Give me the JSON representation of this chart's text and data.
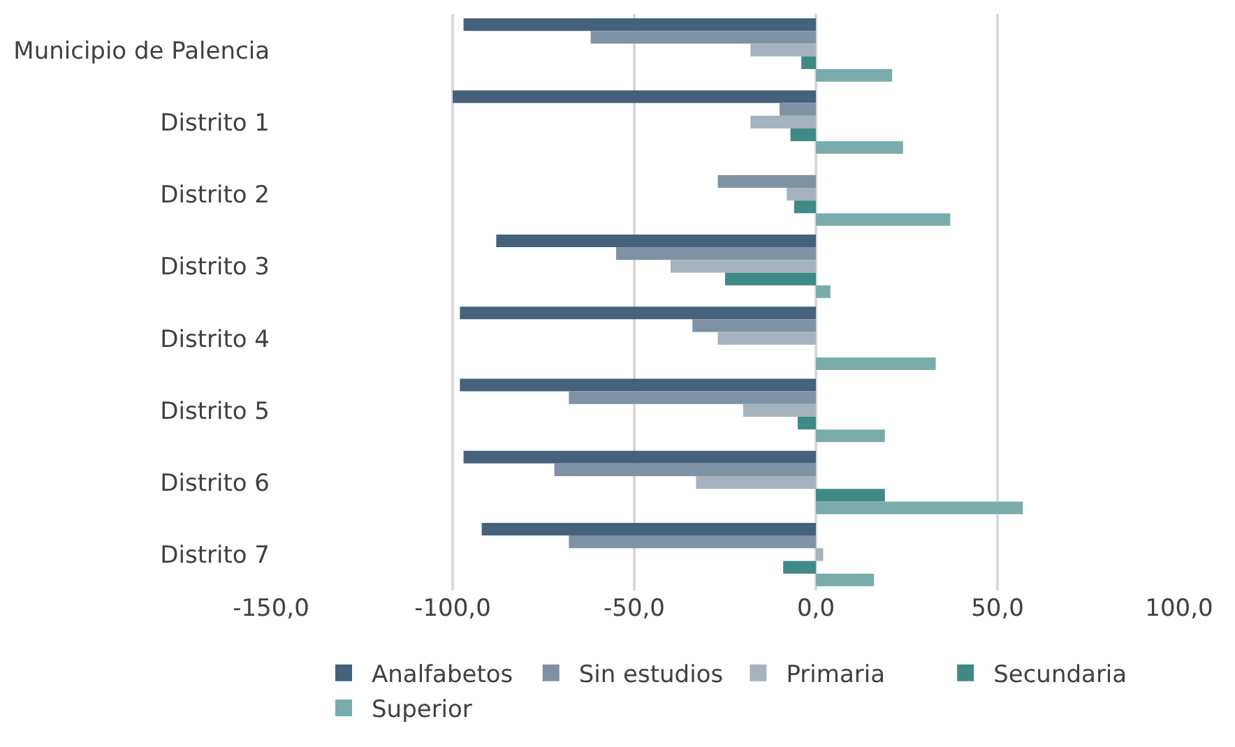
{
  "chart_data": {
    "type": "bar",
    "orientation": "horizontal",
    "categories": [
      "Municipio de Palencia",
      "Distrito 1",
      "Distrito 2",
      "Distrito 3",
      "Distrito 4",
      "Distrito 5",
      "Distrito 6",
      "Distrito 7"
    ],
    "series": [
      {
        "name": "Analfabetos",
        "color": "#44627b",
        "values": [
          -97,
          -100,
          0,
          -88,
          -98,
          -98,
          -97,
          -92
        ]
      },
      {
        "name": "Sin estudios",
        "color": "#7f92a3",
        "values": [
          -62,
          -10,
          -27,
          -55,
          -34,
          -68,
          -72,
          -68
        ]
      },
      {
        "name": "Primaria",
        "color": "#a6b2bd",
        "values": [
          -18,
          -18,
          -8,
          -40,
          -27,
          -20,
          -33,
          2
        ]
      },
      {
        "name": "Secundaria",
        "color": "#418985",
        "values": [
          -4,
          -7,
          -6,
          -25,
          0,
          -5,
          19,
          -9
        ]
      },
      {
        "name": "Superior",
        "color": "#7aacab",
        "values": [
          21,
          24,
          37,
          4,
          33,
          19,
          57,
          16
        ]
      }
    ],
    "xlim": [
      -150,
      100
    ],
    "xticks": [
      {
        "value": -150,
        "label": "-150,0"
      },
      {
        "value": -100,
        "label": "-100,0"
      },
      {
        "value": -50,
        "label": "-50,0"
      },
      {
        "value": 0,
        "label": "0,0"
      },
      {
        "value": 50,
        "label": "50,0"
      },
      {
        "value": 100,
        "label": "100,0"
      }
    ],
    "grid": "x",
    "legend": "bottom"
  }
}
